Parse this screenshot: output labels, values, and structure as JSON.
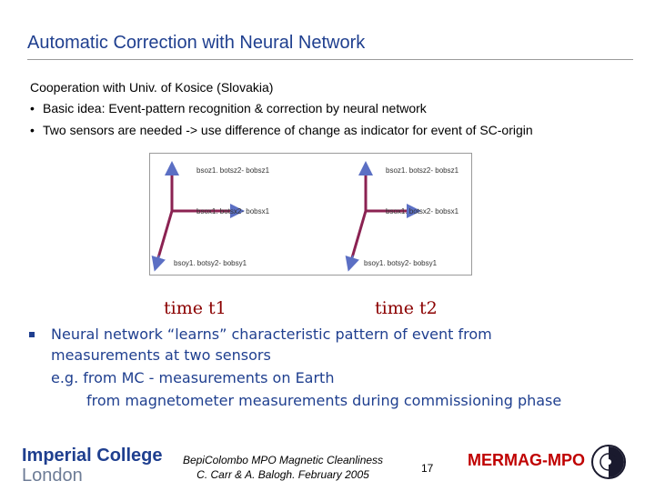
{
  "slide": {
    "title": "Automatic Correction with Neural Network",
    "cooperation": "Cooperation with Univ. of Kosice (Slovakia)",
    "bullets": [
      "Basic idea: Event-pattern recognition & correction by neural network",
      "Two sensors are needed -> use difference of change as indicator for event of SC-origin"
    ],
    "bullet_glyph": "•"
  },
  "figure": {
    "left_panel": {
      "z_label": "bsoz1. botsz2- bobsz1",
      "x_label": "bsox1. botsx2- bobsx1",
      "y_label": "bsoy1. botsy2- bobsy1"
    },
    "right_panel": {
      "z_label": "bsoz1. botsz2- bobsz1",
      "x_label": "bsox1. botsx2- bobsx1",
      "y_label": "bsoy1. botsy2- bobsy1"
    },
    "axis_color": "#8b2252",
    "arrow_color": "#5b6fc4"
  },
  "time_labels": [
    "time t1",
    "time t2"
  ],
  "neural_network": {
    "lines": [
      "Neural network “learns” characteristic pattern of event from",
      "measurements at two sensors",
      "e.g. from MC - measurements on Earth",
      "from magnetometer measurements during commissioning phase"
    ]
  },
  "footer": {
    "logo_line1": "Imperial College",
    "logo_line2": "London",
    "center_line1": "BepiColombo MPO Magnetic Cleanliness",
    "center_line2": "C. Carr & A. Balogh. February 2005",
    "page_number": "17",
    "brand": "MERMAG-MPO"
  },
  "colors": {
    "title": "#1f3f8f",
    "time_label": "#8b0000",
    "brand": "#c00000"
  }
}
